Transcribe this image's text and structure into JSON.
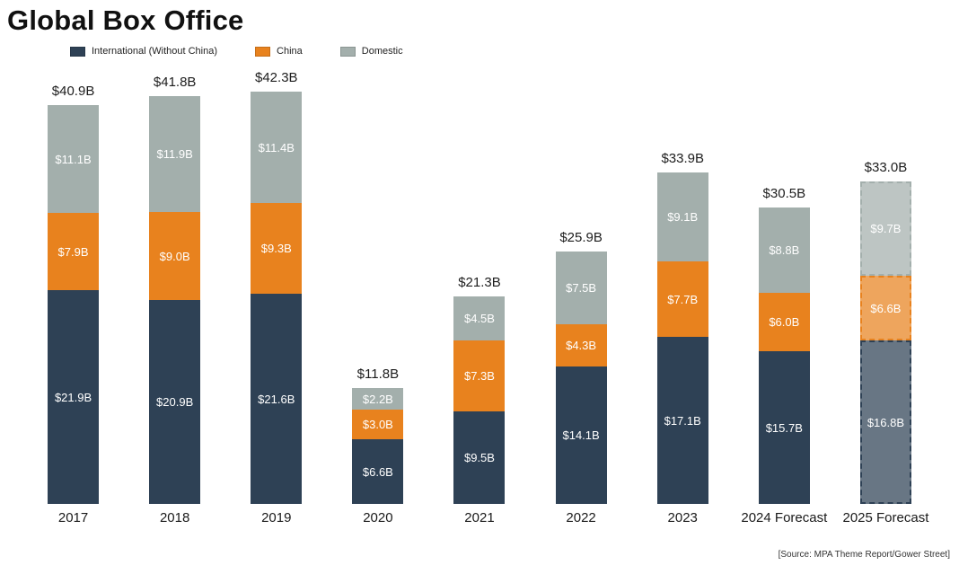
{
  "title": "Global Box Office",
  "source": "[Source: MPA Theme Report/Gower Street]",
  "legend": [
    {
      "label": "International (Without China)",
      "color": "#2e4155"
    },
    {
      "label": "China",
      "color": "#e8821e"
    },
    {
      "label": "Domestic",
      "color": "#a3afac"
    }
  ],
  "chart_data": {
    "type": "bar",
    "stacked": true,
    "title": "Global Box Office",
    "xlabel": "",
    "ylabel": "",
    "ylim": [
      0,
      45
    ],
    "legend_position": "top-left",
    "grid": false,
    "categories": [
      "2017",
      "2018",
      "2019",
      "2020",
      "2021",
      "2022",
      "2023",
      "2024 Forecast",
      "2025 Forecast"
    ],
    "totals": [
      "$40.9B",
      "$41.8B",
      "$42.3B",
      "$11.8B",
      "$21.3B",
      "$25.9B",
      "$33.9B",
      "$30.5B",
      "$33.0B"
    ],
    "dashed": [
      false,
      false,
      false,
      false,
      false,
      false,
      false,
      false,
      true
    ],
    "series": [
      {
        "key": "international",
        "name": "International (Without China)",
        "color": "#2e4155",
        "values": [
          21.9,
          20.9,
          21.6,
          6.6,
          9.5,
          14.1,
          17.1,
          15.7,
          16.8
        ],
        "labels": [
          "$21.9B",
          "$20.9B",
          "$21.6B",
          "$6.6B",
          "$9.5B",
          "$14.1B",
          "$17.1B",
          "$15.7B",
          "$16.8B"
        ]
      },
      {
        "key": "china",
        "name": "China",
        "color": "#e8821e",
        "values": [
          7.9,
          9.0,
          9.3,
          3.0,
          7.3,
          4.3,
          7.7,
          6.0,
          6.6
        ],
        "labels": [
          "$7.9B",
          "$9.0B",
          "$9.3B",
          "$3.0B",
          "$7.3B",
          "$4.3B",
          "$7.7B",
          "$6.0B",
          "$6.6B"
        ]
      },
      {
        "key": "domestic",
        "name": "Domestic",
        "color": "#a3afac",
        "values": [
          11.1,
          11.9,
          11.4,
          2.2,
          4.5,
          7.5,
          9.1,
          8.8,
          9.7
        ],
        "labels": [
          "$11.1B",
          "$11.9B",
          "$11.4B",
          "$2.2B",
          "$4.5B",
          "$7.5B",
          "$9.1B",
          "$8.8B",
          "$9.7B"
        ]
      }
    ]
  }
}
